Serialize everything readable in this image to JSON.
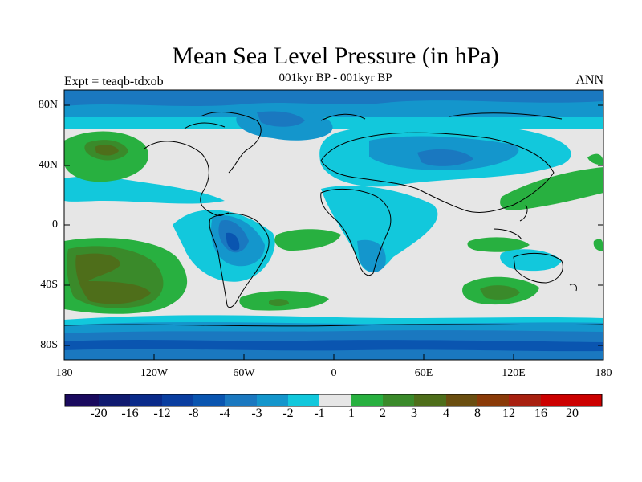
{
  "header": {
    "title": "Mean Sea Level Pressure (in hPa)",
    "subtitle": "001kyr BP - 001kyr BP",
    "experiment": "Expt = teaqb-tdxob",
    "season": "ANN"
  },
  "axes": {
    "lat_labels": [
      "80N",
      "40N",
      "0",
      "40S",
      "80S"
    ],
    "lon_labels": [
      "180",
      "120W",
      "60W",
      "0",
      "60E",
      "120E",
      "180"
    ]
  },
  "colorbar": {
    "labels": [
      "-20",
      "-16",
      "-12",
      "-8",
      "-4",
      "-3",
      "-2",
      "-1",
      "1",
      "2",
      "3",
      "4",
      "8",
      "12",
      "16",
      "20"
    ],
    "colors": [
      "#1a0a5e",
      "#101a70",
      "#0a2a8a",
      "#0a3ea0",
      "#0a55b0",
      "#1a78c0",
      "#1496cc",
      "#12c8dc",
      "#e6e6e6",
      "#28b040",
      "#3a8a2a",
      "#4e6e1a",
      "#6a4e10",
      "#8a3a08",
      "#a82010",
      "#cc0000"
    ]
  }
}
